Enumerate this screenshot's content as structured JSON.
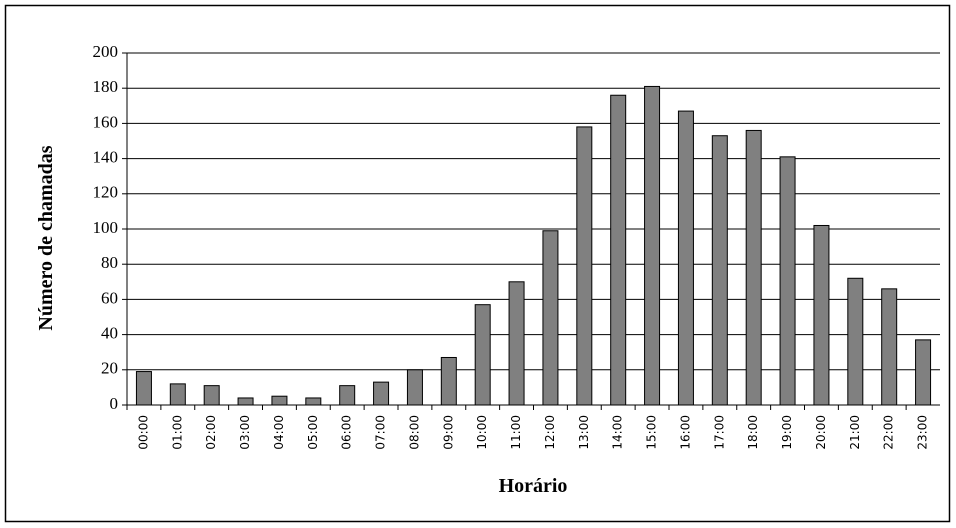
{
  "chart_data": {
    "type": "bar",
    "categories": [
      "00:00",
      "01:00",
      "02:00",
      "03:00",
      "04:00",
      "05:00",
      "06:00",
      "07:00",
      "08:00",
      "09:00",
      "10:00",
      "11:00",
      "12:00",
      "13:00",
      "14:00",
      "15:00",
      "16:00",
      "17:00",
      "18:00",
      "19:00",
      "20:00",
      "21:00",
      "22:00",
      "23:00"
    ],
    "values": [
      19,
      12,
      11,
      4,
      5,
      4,
      11,
      13,
      20,
      27,
      57,
      70,
      99,
      158,
      176,
      181,
      167,
      153,
      156,
      141,
      102,
      72,
      66,
      37
    ],
    "color": "#808080",
    "ylim": [
      0,
      200
    ],
    "yticks": [
      0,
      20,
      40,
      60,
      80,
      100,
      120,
      140,
      160,
      180,
      200
    ],
    "grid": true,
    "x_label": "Horário",
    "y_label": "Número de chamadas"
  }
}
